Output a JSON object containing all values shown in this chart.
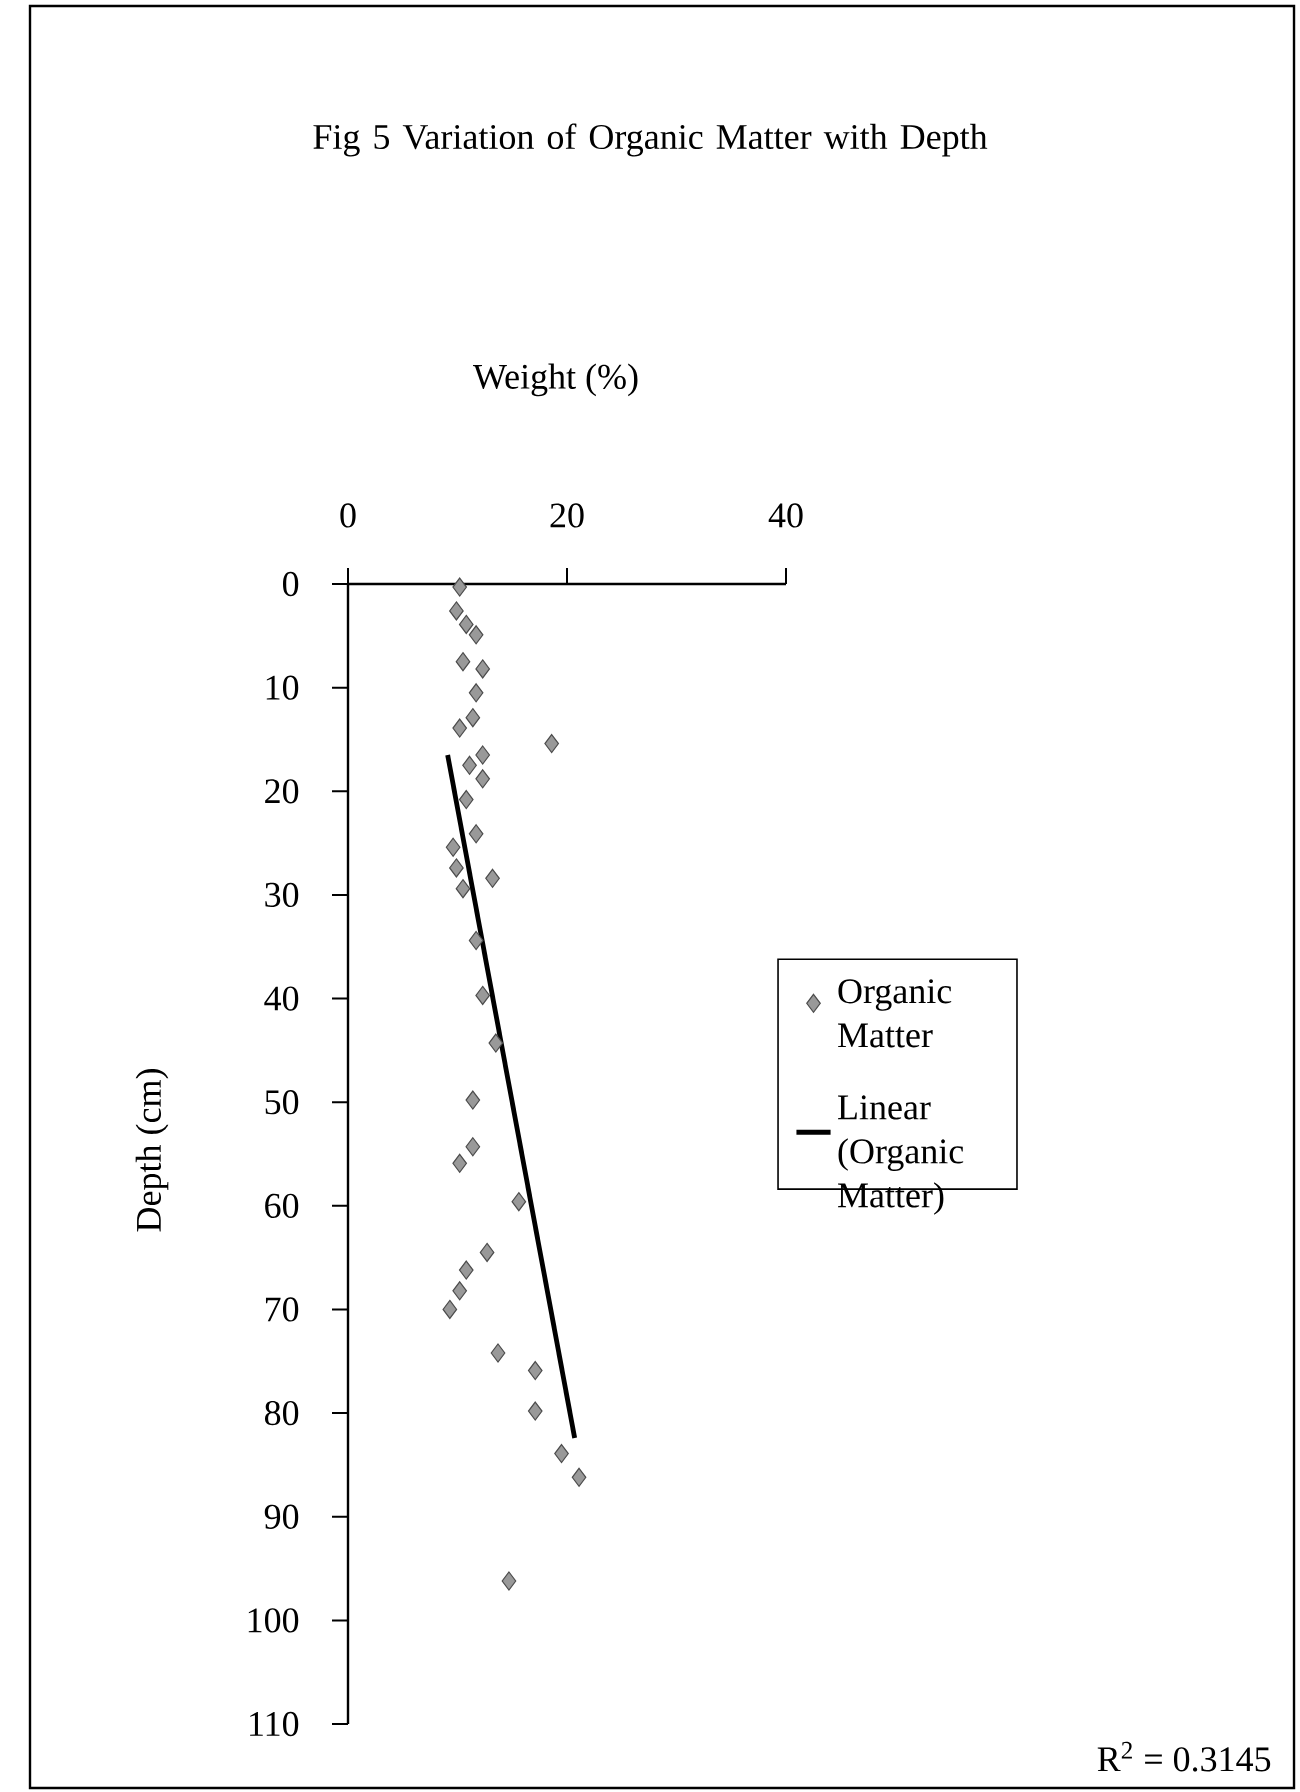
{
  "chart_data": {
    "type": "scatter",
    "title": "Fig 5 Variation of Organic Matter with Depth",
    "xlabel": "Weight (%)",
    "ylabel": "Depth (cm)",
    "xlim": [
      0,
      40
    ],
    "xticks": [
      0,
      20,
      40
    ],
    "ylim": [
      110,
      0
    ],
    "yticks": [
      0,
      10,
      20,
      30,
      40,
      50,
      60,
      70,
      80,
      90,
      100,
      110
    ],
    "marker": "diamond",
    "legend": "right",
    "grid": false,
    "series": [
      {
        "name": "Organic Matter",
        "color": "#999999",
        "x": [
          10.2,
          9.9,
          10.8,
          11.7,
          10.5,
          12.3,
          11.7,
          11.4,
          10.2,
          18.6,
          12.3,
          11.1,
          12.3,
          10.8,
          11.7,
          9.6,
          9.9,
          13.2,
          10.5,
          11.7,
          12.3,
          13.5,
          11.4,
          11.4,
          10.2,
          15.6,
          12.7,
          10.8,
          10.2,
          9.3,
          13.7,
          17.1,
          17.1,
          19.5,
          21.1,
          14.7
        ],
        "values": [
          0.3,
          2.6,
          3.9,
          4.9,
          7.5,
          8.2,
          10.5,
          12.9,
          13.9,
          15.4,
          16.5,
          17.5,
          18.8,
          20.8,
          24.1,
          25.4,
          27.4,
          28.4,
          29.4,
          34.4,
          39.7,
          44.3,
          49.8,
          54.3,
          55.9,
          59.6,
          64.5,
          66.2,
          68.2,
          70,
          74.2,
          75.9,
          79.8,
          83.9,
          86.2,
          96.2
        ]
      },
      {
        "name": "Linear (Organic Matter)",
        "type": "line",
        "marker": "none",
        "color": "#000000",
        "x": [
          9.1,
          20.7
        ],
        "values": [
          16.5,
          82.4
        ]
      }
    ],
    "annotations": [
      "R$^{2}$ = 0.3145"
    ]
  }
}
